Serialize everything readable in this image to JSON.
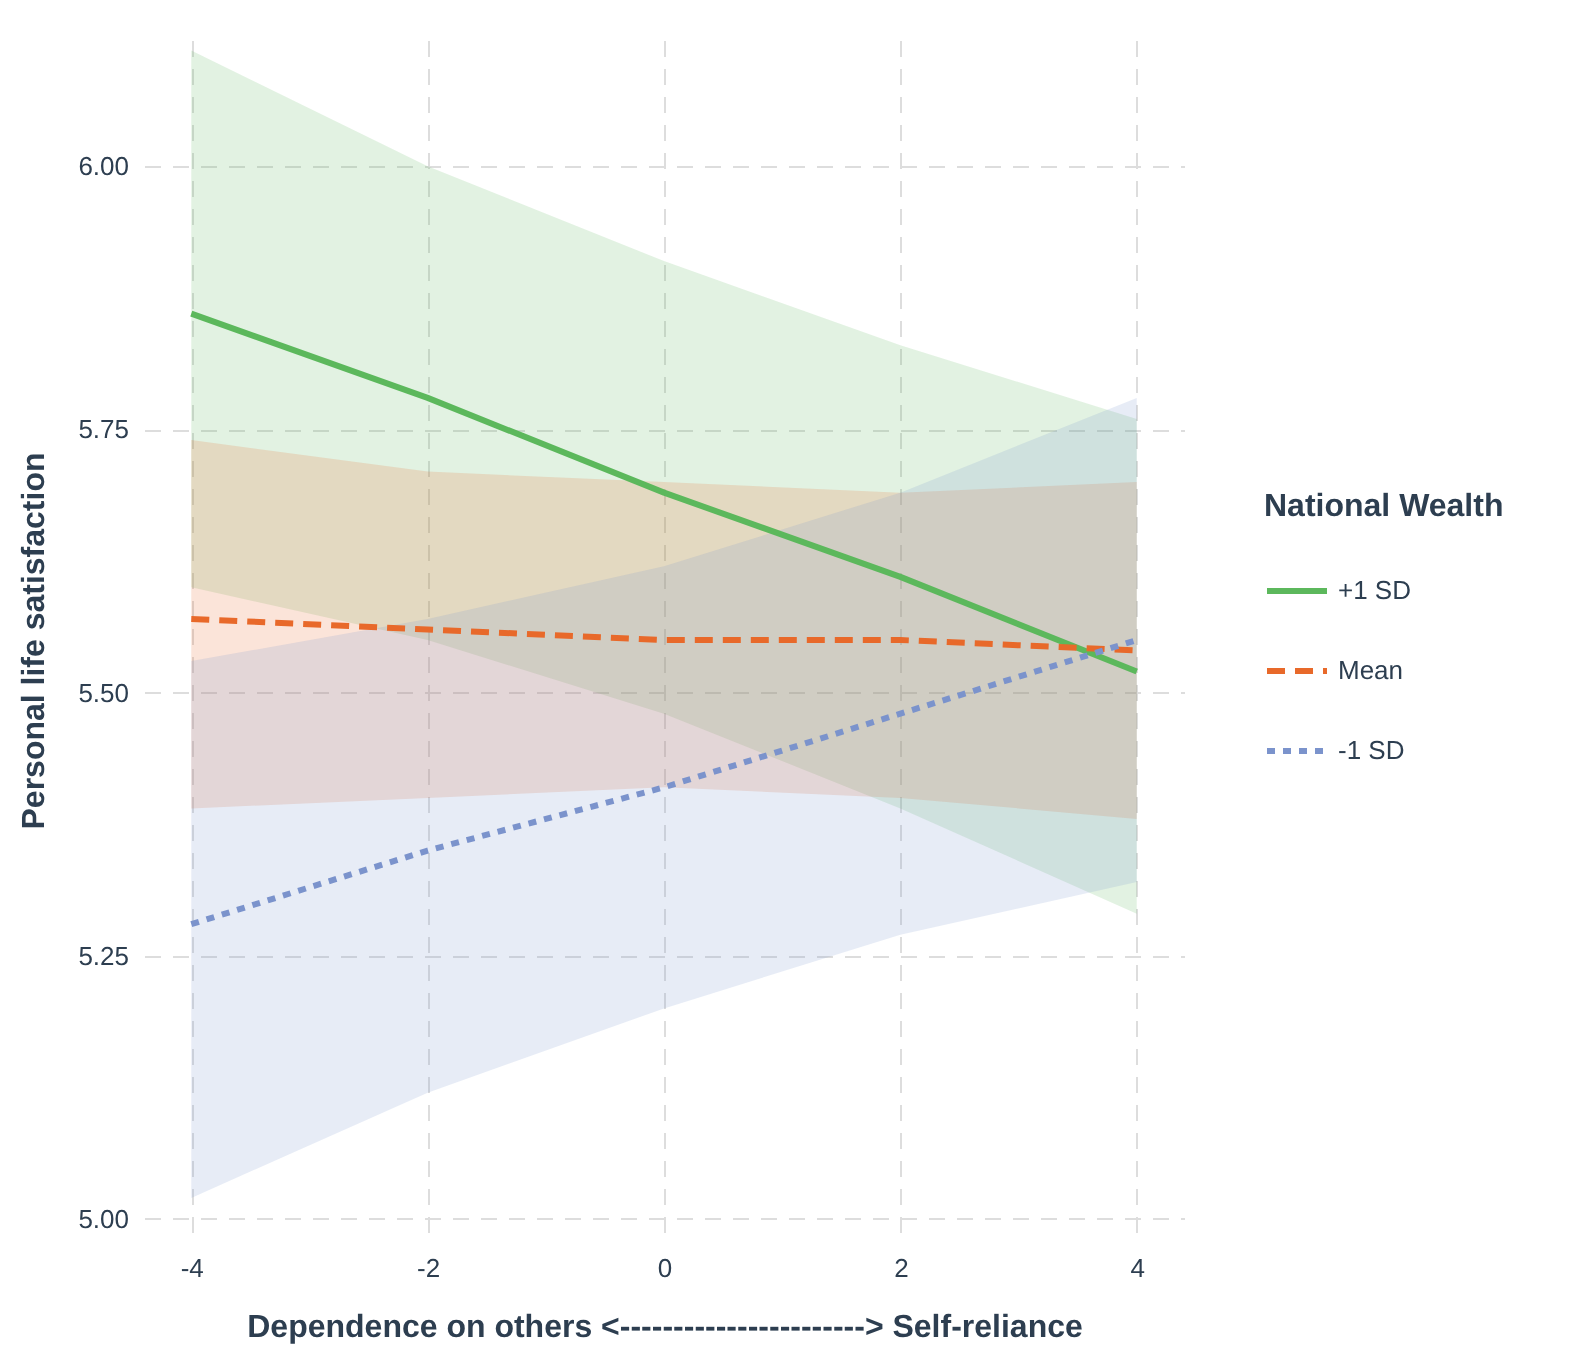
{
  "chart_data": {
    "type": "line",
    "xlabel": "Dependence on others    <-----------------------> Self-reliance",
    "ylabel": "Personal life satisfaction",
    "legend_title": "National Wealth",
    "x": [
      -4,
      -2,
      0,
      2,
      4
    ],
    "series": [
      {
        "name": "+1 SD",
        "color": "#5cb85c",
        "line_style": "solid",
        "values": [
          5.86,
          5.78,
          5.69,
          5.61,
          5.52
        ],
        "lower": [
          5.6,
          5.55,
          5.48,
          5.39,
          5.29
        ],
        "upper": [
          6.11,
          6.0,
          5.91,
          5.83,
          5.76
        ]
      },
      {
        "name": "Mean",
        "color": "#e8692a",
        "line_style": "dashed",
        "values": [
          5.57,
          5.56,
          5.55,
          5.55,
          5.54
        ],
        "lower": [
          5.39,
          5.4,
          5.41,
          5.4,
          5.38
        ],
        "upper": [
          5.74,
          5.71,
          5.7,
          5.69,
          5.7
        ]
      },
      {
        "name": "-1 SD",
        "color": "#7b93cc",
        "line_style": "dotted",
        "values": [
          5.28,
          5.35,
          5.41,
          5.48,
          5.55
        ],
        "lower": [
          5.02,
          5.12,
          5.2,
          5.27,
          5.32
        ],
        "upper": [
          5.53,
          5.57,
          5.62,
          5.69,
          5.78
        ]
      }
    ],
    "xlim": [
      -4.4,
      4.4
    ],
    "xticks": [
      -4,
      -2,
      0,
      2,
      4
    ],
    "ylim": [
      4.98,
      6.12
    ],
    "yticks": [
      {
        "value": 5,
        "label": "5.00"
      },
      {
        "value": 5.25,
        "label": "5.25"
      },
      {
        "value": 5.5,
        "label": "5.50"
      },
      {
        "value": 5.75,
        "label": "5.75"
      },
      {
        "value": 6,
        "label": "6.00"
      }
    ],
    "grid": true,
    "legend": "right"
  }
}
